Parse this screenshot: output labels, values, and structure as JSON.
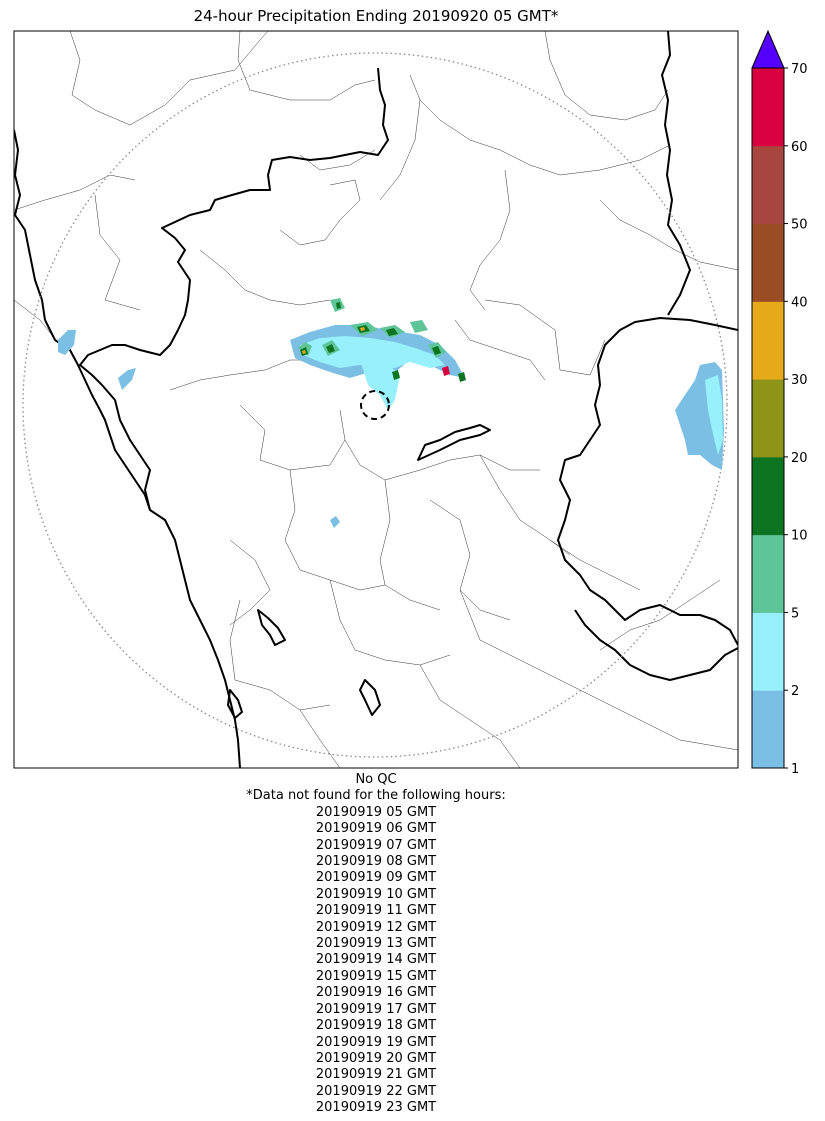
{
  "title": "24-hour Precipitation Ending 20190920 05 GMT*",
  "qc_note": "No QC",
  "missing_header": "*Data not found for the following hours:",
  "missing_hours": [
    "20190919 05 GMT",
    "20190919 06 GMT",
    "20190919 07 GMT",
    "20190919 08 GMT",
    "20190919 09 GMT",
    "20190919 10 GMT",
    "20190919 11 GMT",
    "20190919 12 GMT",
    "20190919 13 GMT",
    "20190919 14 GMT",
    "20190919 15 GMT",
    "20190919 16 GMT",
    "20190919 17 GMT",
    "20190919 18 GMT",
    "20190919 19 GMT",
    "20190919 20 GMT",
    "20190919 21 GMT",
    "20190919 22 GMT",
    "20190919 23 GMT"
  ],
  "colorbar": {
    "levels": [
      "1",
      "2",
      "5",
      "10",
      "20",
      "30",
      "40",
      "50",
      "60",
      "70"
    ],
    "colors": [
      "#7bbfe4",
      "#97f0fc",
      "#5ec599",
      "#0d7421",
      "#8d9418",
      "#e5a919",
      "#9a4c25",
      "#a7463e",
      "#d8003e"
    ],
    "extend_max_color": "#5500ff"
  },
  "map": {
    "state_border_color": "#000000",
    "district_border_color": "#333333",
    "range_ring_color": "#888888",
    "radar_marker": "dashed-circle"
  }
}
